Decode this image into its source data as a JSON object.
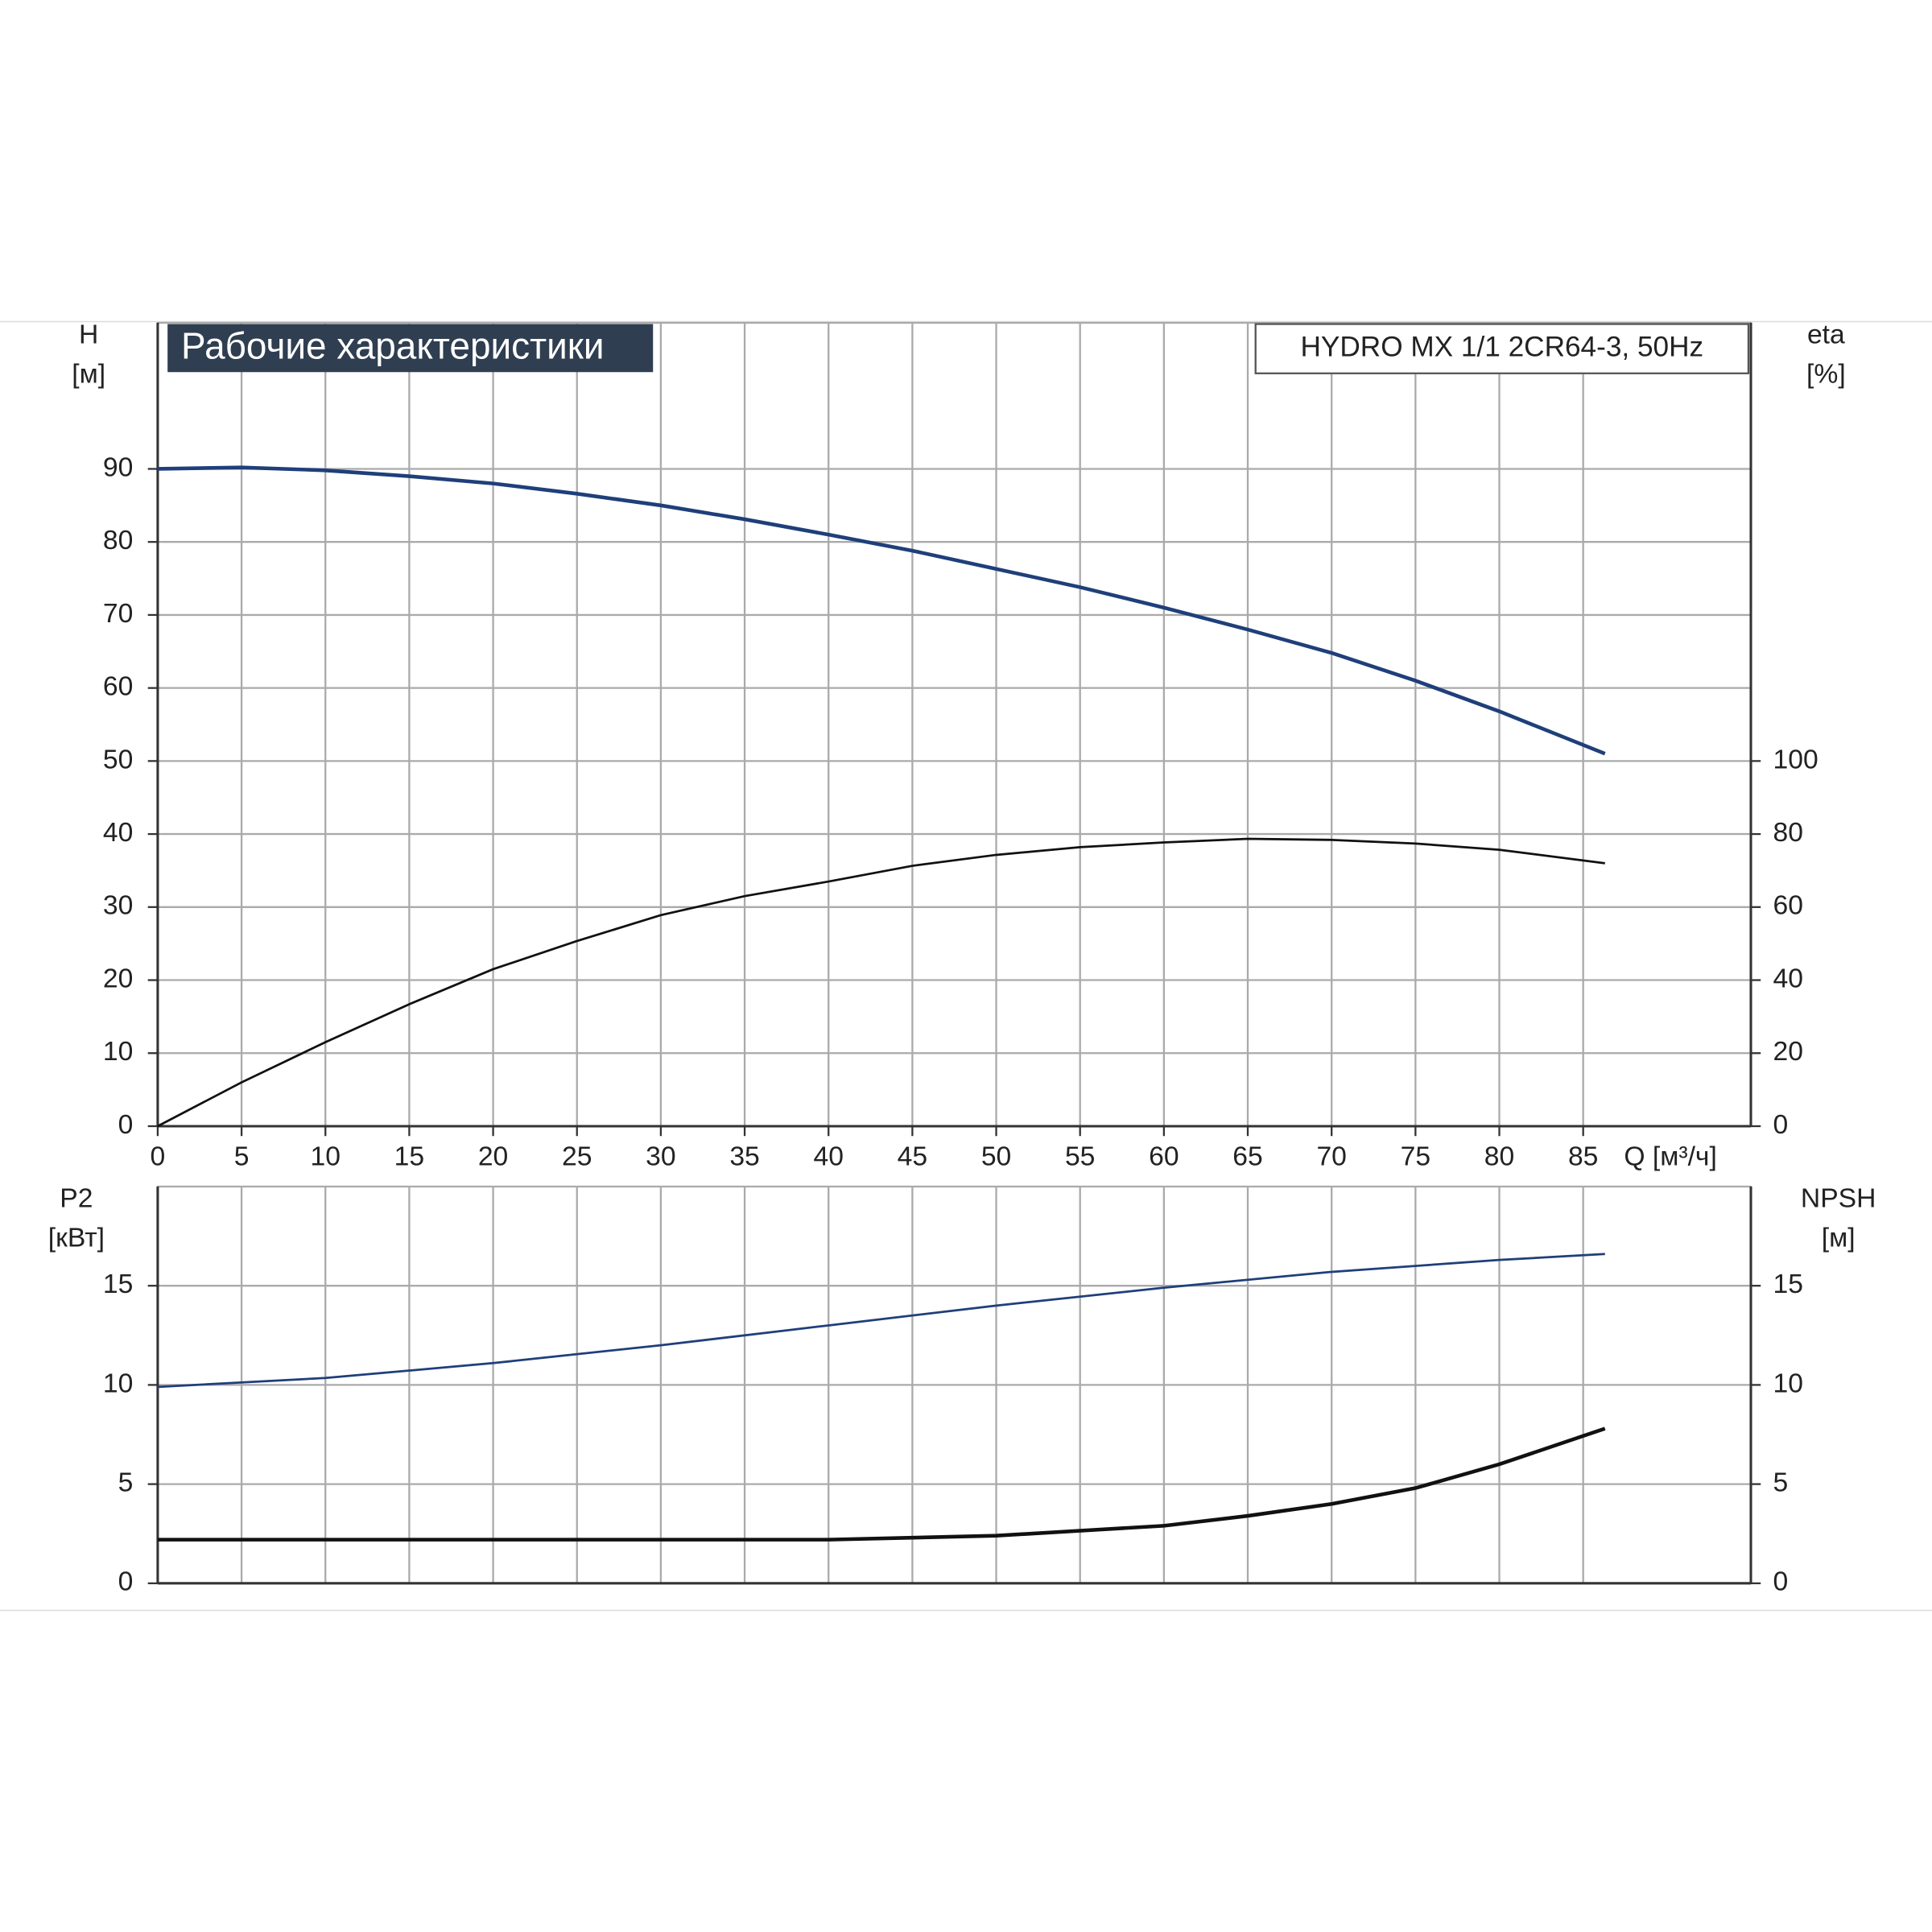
{
  "chart_data": [
    {
      "type": "line",
      "title": "Рабочие характеристики",
      "subtitle": "HYDRO MX 1/1 2CR64-3, 50Hz",
      "x_label": "Q [м³/ч]",
      "y_label": [
        "H",
        "[м]"
      ],
      "y2_label": [
        "eta",
        "[%]"
      ],
      "xlim": [
        0,
        95
      ],
      "xticks": [
        0,
        5,
        10,
        15,
        20,
        25,
        30,
        35,
        40,
        45,
        50,
        55,
        60,
        65,
        70,
        75,
        80,
        85
      ],
      "ylim": [
        0,
        110
      ],
      "yticks": [
        0,
        10,
        20,
        30,
        40,
        50,
        60,
        70,
        80,
        90
      ],
      "y2lim": [
        0,
        220
      ],
      "y2ticks": [
        0,
        20,
        40,
        60,
        80,
        100
      ],
      "grid": true,
      "series": [
        {
          "name": "H",
          "color": "#1f3f7a",
          "x": [
            0,
            5,
            10,
            15,
            20,
            25,
            30,
            35,
            40,
            45,
            50,
            55,
            60,
            65,
            70,
            75,
            80,
            86.3
          ],
          "values": [
            90,
            90.2,
            89.8,
            89,
            88,
            86.6,
            85,
            83.1,
            81,
            78.8,
            76.3,
            73.8,
            71,
            68,
            64.8,
            61,
            56.8,
            51
          ]
        },
        {
          "name": "eta",
          "color": "#111111",
          "axis": "y2",
          "x": [
            0,
            5,
            10,
            15,
            20,
            25,
            30,
            35,
            40,
            45,
            50,
            55,
            60,
            65,
            70,
            75,
            80,
            86.3
          ],
          "values": [
            0,
            12,
            23,
            33.4,
            43,
            50.7,
            57.8,
            63,
            67,
            71.3,
            74.3,
            76.4,
            77.7,
            78.7,
            78.4,
            77.4,
            75.7,
            72
          ]
        }
      ]
    },
    {
      "type": "line",
      "y_label": [
        "P2",
        "[кВт]"
      ],
      "y2_label": [
        "NPSH",
        "[м]"
      ],
      "xlim": [
        0,
        95
      ],
      "ylim": [
        0,
        20
      ],
      "yticks": [
        0,
        5,
        10,
        15
      ],
      "y2lim": [
        0,
        20
      ],
      "y2ticks": [
        0,
        5,
        10,
        15
      ],
      "grid": true,
      "series": [
        {
          "name": "P2",
          "color": "#1f3f7a",
          "x": [
            0,
            10,
            20,
            30,
            40,
            50,
            60,
            70,
            80,
            86.3
          ],
          "values": [
            9.9,
            10.35,
            11.1,
            12.0,
            13.0,
            14.0,
            14.9,
            15.7,
            16.3,
            16.6
          ]
        },
        {
          "name": "NPSH",
          "color": "#111111",
          "axis": "y2",
          "x": [
            0,
            30,
            40,
            50,
            60,
            65,
            70,
            75,
            80,
            86.3
          ],
          "values": [
            2.2,
            2.2,
            2.2,
            2.4,
            2.9,
            3.4,
            4.0,
            4.8,
            6.0,
            7.8
          ]
        }
      ]
    }
  ]
}
